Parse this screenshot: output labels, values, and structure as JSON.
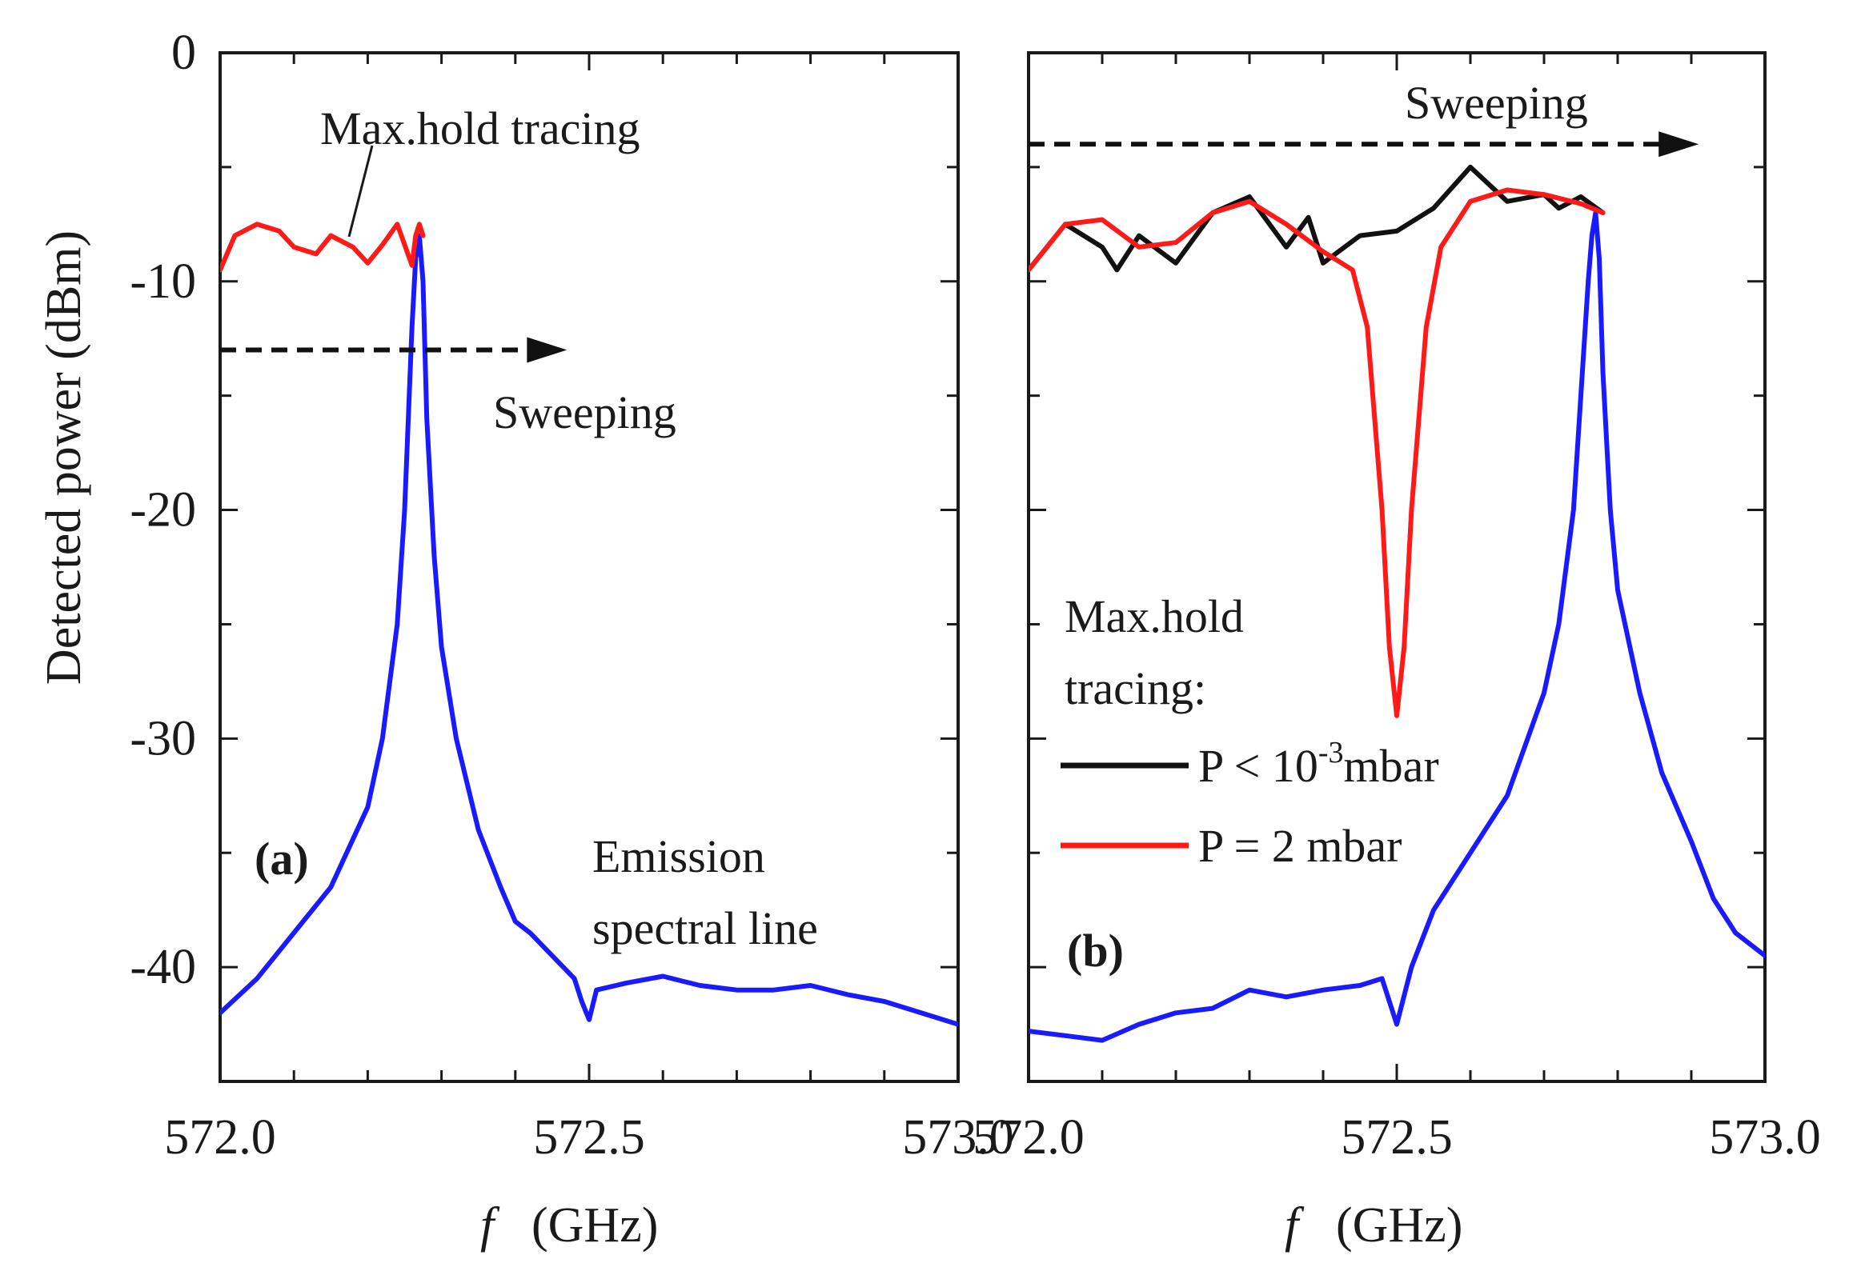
{
  "chart_data": [
    {
      "type": "line",
      "panel": "(a)",
      "xlabel_italic": "f",
      "xlabel_unit": "(GHz)",
      "ylabel": "Detected power (dBm)",
      "xlim": [
        572.0,
        573.0
      ],
      "ylim": [
        -45,
        0
      ],
      "x_ticks": [
        572.0,
        572.5,
        573.0
      ],
      "x_tick_labels": [
        "572.0",
        "572.5",
        "573.0"
      ],
      "y_ticks": [
        0,
        -10,
        -20,
        -30,
        -40
      ],
      "y_tick_labels": [
        "0",
        "-10",
        "-20",
        "-30",
        "-40"
      ],
      "annotations": {
        "max_hold": "Max.hold tracing",
        "sweeping": "Sweeping",
        "emission_line1": "Emission",
        "emission_line2": "spectral line"
      },
      "sweep_arrow": {
        "x_start": 572.0,
        "x_end": 572.47,
        "y": -13
      },
      "series": [
        {
          "name": "Emission spectral line",
          "color": "#1a1aff",
          "x": [
            572.0,
            572.05,
            572.1,
            572.15,
            572.2,
            572.22,
            572.24,
            572.25,
            572.26,
            572.265,
            572.27,
            572.275,
            572.28,
            572.29,
            572.3,
            572.32,
            572.35,
            572.38,
            572.4,
            572.42,
            572.45,
            572.48,
            572.49,
            572.5,
            572.51,
            572.55,
            572.6,
            572.65,
            572.7,
            572.75,
            572.8,
            572.85,
            572.9,
            572.95,
            573.0
          ],
          "y": [
            -42,
            -40.5,
            -38.5,
            -36.5,
            -33,
            -30,
            -25,
            -20,
            -12,
            -9,
            -8,
            -10,
            -16,
            -22,
            -26,
            -30,
            -34,
            -36.5,
            -38,
            -38.5,
            -39.5,
            -40.5,
            -41.5,
            -42.3,
            -41,
            -40.7,
            -40.4,
            -40.8,
            -41,
            -41,
            -40.8,
            -41.2,
            -41.5,
            -42,
            -42.5
          ]
        },
        {
          "name": "Max.hold tracing",
          "color": "#ff1a1a",
          "x": [
            572.0,
            572.02,
            572.05,
            572.08,
            572.1,
            572.13,
            572.15,
            572.18,
            572.2,
            572.22,
            572.24,
            572.26,
            572.265,
            572.27,
            572.275
          ],
          "y": [
            -9.5,
            -8,
            -7.5,
            -7.8,
            -8.5,
            -8.8,
            -8,
            -8.5,
            -9.2,
            -8.4,
            -7.5,
            -9.3,
            -8,
            -7.5,
            -8
          ]
        }
      ]
    },
    {
      "type": "line",
      "panel": "(b)",
      "xlabel_italic": "f",
      "xlabel_unit": "(GHz)",
      "xlim": [
        572.0,
        573.0
      ],
      "ylim": [
        -45,
        0
      ],
      "x_ticks": [
        572.0,
        572.5,
        573.0
      ],
      "x_tick_labels": [
        "572.0",
        "572.5",
        "573.0"
      ],
      "annotations": {
        "sweeping": "Sweeping"
      },
      "sweep_arrow": {
        "x_start": 572.0,
        "x_end": 572.91,
        "y": -4
      },
      "legend": {
        "title_line1": "Max.hold",
        "title_line2": "tracing:",
        "entries": [
          {
            "label_main": "P < 10",
            "label_sup": "-3",
            "label_tail": "mbar",
            "color": "#111111"
          },
          {
            "label_main": "P = 2 mbar",
            "label_sup": "",
            "label_tail": "",
            "color": "#ff1a1a"
          }
        ]
      },
      "series": [
        {
          "name": "Emission spectral line",
          "color": "#1a1aff",
          "x": [
            572.0,
            572.05,
            572.1,
            572.15,
            572.2,
            572.25,
            572.3,
            572.35,
            572.4,
            572.45,
            572.48,
            572.5,
            572.52,
            572.55,
            572.6,
            572.65,
            572.7,
            572.72,
            572.74,
            572.75,
            572.76,
            572.765,
            572.77,
            572.775,
            572.78,
            572.79,
            572.8,
            572.83,
            572.86,
            572.9,
            572.93,
            572.96,
            573.0
          ],
          "y": [
            -42.8,
            -43,
            -43.2,
            -42.5,
            -42,
            -41.8,
            -41,
            -41.3,
            -41,
            -40.8,
            -40.5,
            -42.5,
            -40,
            -37.5,
            -35,
            -32.5,
            -28,
            -25,
            -20,
            -15,
            -10,
            -8,
            -7,
            -9,
            -14,
            -20,
            -23.5,
            -28,
            -31.5,
            -34.5,
            -37,
            -38.5,
            -39.5
          ]
        },
        {
          "name": "P < 10^-3 mbar",
          "color": "#111111",
          "x": [
            572.0,
            572.05,
            572.1,
            572.12,
            572.15,
            572.2,
            572.25,
            572.3,
            572.35,
            572.38,
            572.4,
            572.45,
            572.5,
            572.55,
            572.6,
            572.65,
            572.7,
            572.72,
            572.75,
            572.78
          ],
          "y": [
            -9.5,
            -7.5,
            -8.5,
            -9.5,
            -8,
            -9.2,
            -7,
            -6.3,
            -8.5,
            -7.2,
            -9.2,
            -8,
            -7.8,
            -6.8,
            -5,
            -6.5,
            -6.2,
            -6.8,
            -6.3,
            -7
          ]
        },
        {
          "name": "P = 2 mbar",
          "color": "#ff1a1a",
          "x": [
            572.0,
            572.05,
            572.1,
            572.15,
            572.2,
            572.25,
            572.3,
            572.35,
            572.4,
            572.44,
            572.46,
            572.48,
            572.49,
            572.5,
            572.51,
            572.52,
            572.54,
            572.56,
            572.6,
            572.65,
            572.7,
            572.75,
            572.78
          ],
          "y": [
            -9.5,
            -7.5,
            -7.3,
            -8.5,
            -8.3,
            -7,
            -6.5,
            -7.5,
            -8.7,
            -9.5,
            -12,
            -20,
            -26,
            -29,
            -26,
            -20,
            -12,
            -8.5,
            -6.5,
            -6,
            -6.2,
            -6.6,
            -7
          ]
        }
      ]
    }
  ]
}
